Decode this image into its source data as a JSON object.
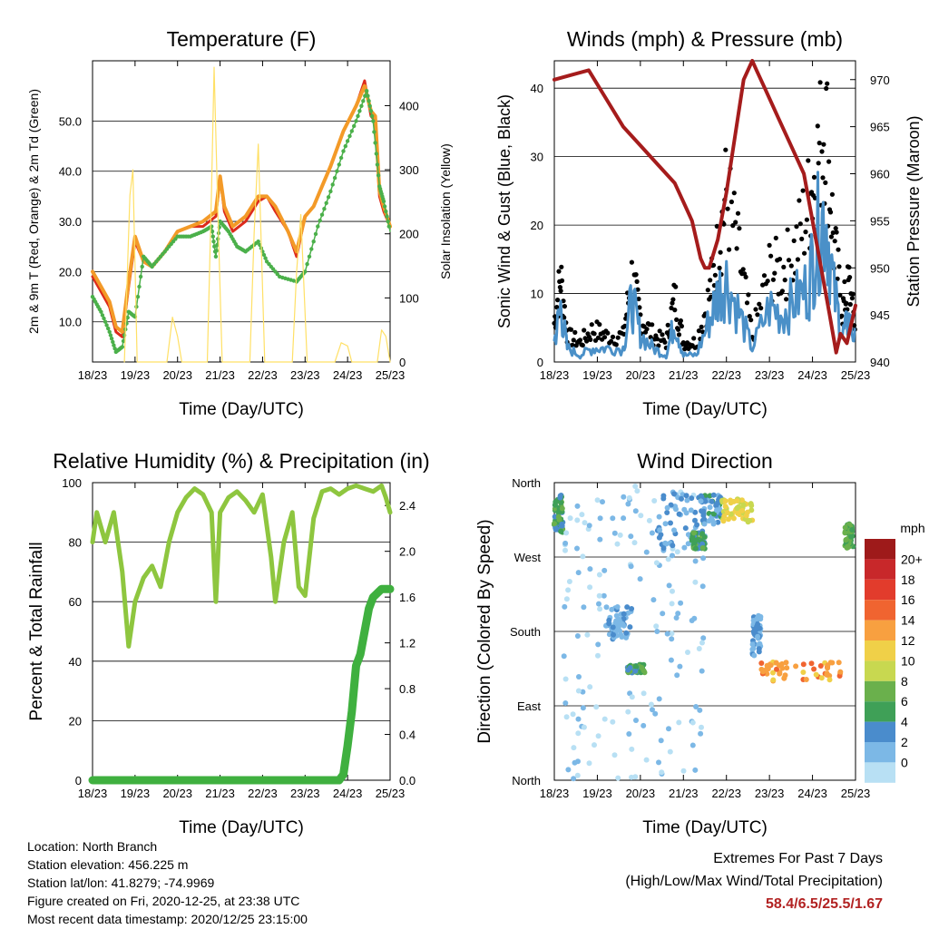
{
  "chart_data": [
    {
      "type": "line",
      "title": "Temperature (F)",
      "xlabel": "Time (Day/UTC)",
      "ylabel": "2m & 9m T (Red, Orange) & 2m Td (Green)",
      "y2label": "Solar Insolation (Yellow)",
      "x_ticks": [
        "18/23",
        "19/23",
        "20/23",
        "21/23",
        "22/23",
        "23/23",
        "24/23",
        "25/23"
      ],
      "y_ticks": [
        "10.0",
        "20.0",
        "30.0",
        "40.0",
        "50.0"
      ],
      "y2_ticks": [
        "0",
        "100",
        "200",
        "300",
        "400"
      ],
      "ylim": [
        2,
        62
      ],
      "y2lim": [
        0,
        470
      ],
      "xlim": [
        0,
        7
      ],
      "grid": "horizontal",
      "series": [
        {
          "name": "2m T",
          "color": "#dd2a1b",
          "x": [
            0,
            0.2,
            0.4,
            0.55,
            0.7,
            0.85,
            1.0,
            1.2,
            1.4,
            1.7,
            2.0,
            2.3,
            2.6,
            2.9,
            3.0,
            3.1,
            3.3,
            3.6,
            3.9,
            4.1,
            4.3,
            4.6,
            4.8,
            5.0,
            5.2,
            5.4,
            5.6,
            5.9,
            6.2,
            6.4,
            6.55,
            6.65,
            6.75,
            6.85,
            7.0
          ],
          "values": [
            19,
            16,
            13,
            8,
            7,
            17,
            26,
            22,
            21,
            24,
            28,
            29,
            29,
            31,
            39,
            32,
            28,
            30,
            34,
            35,
            32,
            28,
            23,
            31,
            33,
            37,
            41,
            48,
            53,
            58,
            51,
            50,
            35,
            32,
            29
          ]
        },
        {
          "name": "9m T",
          "color": "#f39a28",
          "x": [
            0,
            0.2,
            0.4,
            0.55,
            0.7,
            0.85,
            1.0,
            1.2,
            1.4,
            1.7,
            2.0,
            2.3,
            2.6,
            2.9,
            3.0,
            3.1,
            3.3,
            3.6,
            3.9,
            4.1,
            4.3,
            4.6,
            4.8,
            5.0,
            5.2,
            5.4,
            5.6,
            5.9,
            6.2,
            6.4,
            6.55,
            6.65,
            6.75,
            6.85,
            7.0
          ],
          "values": [
            20,
            17,
            14,
            9,
            8,
            18,
            27,
            22,
            21,
            24,
            28,
            29,
            30,
            32,
            39,
            33,
            29,
            31,
            35,
            35,
            33,
            28,
            24,
            31,
            33,
            37,
            41,
            48,
            53,
            57,
            52,
            51,
            36,
            33,
            29
          ]
        },
        {
          "name": "2m Td",
          "color": "#4bb04a",
          "x": [
            0,
            0.2,
            0.4,
            0.55,
            0.7,
            0.85,
            1.0,
            1.2,
            1.4,
            1.7,
            2.0,
            2.3,
            2.6,
            2.8,
            2.9,
            3.0,
            3.2,
            3.4,
            3.6,
            3.9,
            4.1,
            4.4,
            4.8,
            5.0,
            5.3,
            5.6,
            5.9,
            6.2,
            6.45,
            6.6,
            6.75,
            6.85,
            7.0
          ],
          "values": [
            15,
            12,
            8,
            4,
            5,
            12,
            11,
            23,
            21,
            24,
            27,
            27,
            28,
            29,
            23,
            30,
            28,
            25,
            24,
            26,
            22,
            19,
            18,
            20,
            29,
            36,
            44,
            50,
            56,
            50,
            37,
            34,
            28
          ]
        },
        {
          "name": "Solar Insolation",
          "color": "#ffe066",
          "axis": "y2",
          "x": [
            0.75,
            0.88,
            0.95,
            1.05,
            1.75,
            1.88,
            2.0,
            2.1,
            2.7,
            2.8,
            2.86,
            2.95,
            3.05,
            3.7,
            3.8,
            3.9,
            4.05,
            4.7,
            4.8,
            4.9,
            5.05,
            5.7,
            5.85,
            6.0,
            6.1,
            6.7,
            6.8,
            6.9,
            7.0
          ],
          "values": [
            0,
            260,
            300,
            0,
            0,
            70,
            40,
            0,
            0,
            270,
            460,
            230,
            0,
            0,
            200,
            340,
            0,
            0,
            140,
            230,
            0,
            0,
            30,
            25,
            0,
            0,
            50,
            40,
            0
          ]
        }
      ]
    },
    {
      "type": "scatter",
      "title": "Winds (mph) & Pressure (mb)",
      "xlabel": "Time (Day/UTC)",
      "ylabel": "Sonic Wind & Gust (Blue, Black)",
      "y2label": "Station Pressure (Maroon)",
      "x_ticks": [
        "18/23",
        "19/23",
        "20/23",
        "21/23",
        "22/23",
        "23/23",
        "24/23",
        "25/23"
      ],
      "y_ticks": [
        "0",
        "10",
        "20",
        "30",
        "40"
      ],
      "y2_ticks": [
        "940",
        "945",
        "950",
        "955",
        "960",
        "965",
        "970"
      ],
      "ylim": [
        0,
        44
      ],
      "y2lim": [
        940,
        972
      ],
      "xlim": [
        0,
        7
      ],
      "grid": "horizontal",
      "series": [
        {
          "name": "Sonic Wind",
          "color": "#4a90c8",
          "x": [
            0,
            0.15,
            0.3,
            0.6,
            0.9,
            1.2,
            1.6,
            1.8,
            2.0,
            2.3,
            2.6,
            2.8,
            3.0,
            3.3,
            3.6,
            3.8,
            4.0,
            4.3,
            4.6,
            5.0,
            5.3,
            5.6,
            5.9,
            6.1,
            6.3,
            6.5,
            6.7,
            6.85,
            7.0
          ],
          "values": [
            3,
            8,
            2,
            1,
            2,
            2,
            2,
            9,
            4,
            2,
            1,
            6,
            1,
            1,
            6,
            10,
            12,
            7,
            2,
            8,
            7,
            9,
            11,
            18,
            22,
            10,
            4,
            6,
            3
          ]
        },
        {
          "name": "Gust",
          "color": "#000000",
          "x": [
            0,
            0.15,
            0.3,
            0.6,
            0.9,
            1.2,
            1.6,
            1.8,
            2.0,
            2.3,
            2.6,
            2.8,
            3.0,
            3.3,
            3.6,
            3.8,
            4.0,
            4.3,
            4.6,
            5.0,
            5.3,
            5.6,
            5.9,
            6.1,
            6.3,
            6.5,
            6.7,
            6.85,
            7.0
          ],
          "values": [
            6,
            13,
            4,
            3,
            5,
            4,
            4,
            13,
            7,
            4,
            3,
            10,
            3,
            3,
            10,
            17,
            26,
            16,
            4,
            14,
            14,
            17,
            24,
            30,
            38,
            18,
            8,
            12,
            5
          ]
        },
        {
          "name": "Station Pressure",
          "color": "#a51c1c",
          "axis": "y2",
          "x": [
            0,
            0.4,
            0.8,
            1.2,
            1.6,
            2.0,
            2.4,
            2.8,
            3.0,
            3.2,
            3.4,
            3.5,
            3.6,
            3.8,
            4.0,
            4.2,
            4.4,
            4.6,
            4.7,
            4.9,
            5.2,
            5.5,
            5.8,
            6.0,
            6.2,
            6.4,
            6.55,
            6.65,
            6.8,
            7.0
          ],
          "values": [
            970,
            970.5,
            971,
            968,
            965,
            963,
            961,
            959,
            957,
            955,
            951,
            950,
            950,
            953,
            958,
            964,
            970,
            972,
            971,
            969,
            966,
            963,
            960,
            955,
            950,
            945,
            941,
            943,
            942,
            946
          ]
        }
      ]
    },
    {
      "type": "line",
      "title": "Relative Humidity (%) & Precipitation (in)",
      "xlabel": "Time (Day/UTC)",
      "ylabel": "Percent & Total Rainfall",
      "x_ticks": [
        "18/23",
        "19/23",
        "20/23",
        "21/23",
        "22/23",
        "23/23",
        "24/23",
        "25/23"
      ],
      "y_ticks": [
        "0",
        "20",
        "40",
        "60",
        "80",
        "100"
      ],
      "y2_ticks": [
        "0.0",
        "0.4",
        "0.8",
        "1.2",
        "1.6",
        "2.0",
        "2.4"
      ],
      "ylim": [
        0,
        100
      ],
      "y2lim": [
        0,
        2.6
      ],
      "xlim": [
        0,
        7
      ],
      "grid": "horizontal",
      "series": [
        {
          "name": "Relative Humidity",
          "color": "#8ec63f",
          "x": [
            0,
            0.1,
            0.3,
            0.5,
            0.7,
            0.85,
            1.0,
            1.2,
            1.4,
            1.6,
            1.8,
            2.0,
            2.2,
            2.4,
            2.6,
            2.8,
            2.9,
            3.0,
            3.2,
            3.4,
            3.6,
            3.8,
            4.0,
            4.2,
            4.3,
            4.5,
            4.7,
            4.85,
            5.0,
            5.2,
            5.4,
            5.6,
            5.8,
            6.0,
            6.2,
            6.4,
            6.6,
            6.8,
            6.9,
            7.0
          ],
          "values": [
            80,
            90,
            80,
            90,
            70,
            45,
            60,
            68,
            72,
            65,
            80,
            90,
            95,
            98,
            96,
            90,
            60,
            90,
            95,
            97,
            94,
            90,
            96,
            75,
            60,
            80,
            90,
            65,
            62,
            88,
            97,
            98,
            96,
            98,
            99,
            98,
            97,
            99,
            95,
            90
          ]
        },
        {
          "name": "Total Precipitation",
          "color": "#3fb03f",
          "axis": "y2",
          "x": [
            0,
            1,
            2,
            3,
            4,
            5,
            5.8,
            5.9,
            6.0,
            6.1,
            6.2,
            6.3,
            6.4,
            6.5,
            6.6,
            6.8,
            7.0
          ],
          "values": [
            0,
            0,
            0,
            0,
            0,
            0,
            0,
            0.05,
            0.3,
            0.6,
            1.0,
            1.1,
            1.3,
            1.5,
            1.6,
            1.67,
            1.67
          ]
        }
      ]
    },
    {
      "type": "scatter",
      "title": "Wind Direction",
      "xlabel": "Time (Day/UTC)",
      "ylabel": "Direction (Colored By Speed)",
      "x_ticks": [
        "18/23",
        "19/23",
        "20/23",
        "21/23",
        "22/23",
        "23/23",
        "24/23",
        "25/23"
      ],
      "y_ticks": [
        "North",
        "East",
        "South",
        "West",
        "North"
      ],
      "ylim": [
        0,
        360
      ],
      "xlim": [
        0,
        7
      ],
      "grid": "horizontal",
      "legend_title": "mph",
      "legend_labels": [
        "20+",
        "18",
        "16",
        "14",
        "12",
        "10",
        "8",
        "6",
        "4",
        "2",
        "0"
      ],
      "legend_colors": [
        "#9e1a1a",
        "#c8282a",
        "#e23c2c",
        "#f06430",
        "#f8a040",
        "#f0d048",
        "#c8d850",
        "#6ab04c",
        "#3fa057",
        "#4a8ccc",
        "#7cb8e6",
        "#b8e0f4"
      ],
      "clusters": [
        {
          "x_range": [
            0,
            0.2
          ],
          "dir_range": [
            300,
            345
          ],
          "speed": 6
        },
        {
          "x_range": [
            0.2,
            3.5
          ],
          "dir_range": [
            0,
            360
          ],
          "speed": 1
        },
        {
          "x_range": [
            1.2,
            1.8
          ],
          "dir_range": [
            170,
            210
          ],
          "speed": 3
        },
        {
          "x_range": [
            1.7,
            2.1
          ],
          "dir_range": [
            130,
            140
          ],
          "speed": 6
        },
        {
          "x_range": [
            2.4,
            3.5
          ],
          "dir_range": [
            280,
            350
          ],
          "speed": 3
        },
        {
          "x_range": [
            3.2,
            3.5
          ],
          "dir_range": [
            280,
            300
          ],
          "speed": 6
        },
        {
          "x_range": [
            3.4,
            3.9
          ],
          "dir_range": [
            310,
            345
          ],
          "speed": 4
        },
        {
          "x_range": [
            3.9,
            4.6
          ],
          "dir_range": [
            310,
            340
          ],
          "speed": 11
        },
        {
          "x_range": [
            4.6,
            4.8
          ],
          "dir_range": [
            150,
            200
          ],
          "speed": 3
        },
        {
          "x_range": [
            4.8,
            6.7
          ],
          "dir_range": [
            120,
            145
          ],
          "speed": 14
        },
        {
          "x_range": [
            6.75,
            6.95
          ],
          "dir_range": [
            280,
            310
          ],
          "speed": 7
        }
      ]
    }
  ],
  "footer": {
    "location": "Location: North Branch",
    "elevation": "Station elevation: 456.225 m",
    "latlon": "Station lat/lon: 41.8279; -74.9969",
    "created": "Figure created on Fri, 2020-12-25, at 23:38 UTC",
    "recent": "Most recent data timestamp: 2020/12/25 23:15:00"
  },
  "extremes": {
    "title": "Extremes For Past 7 Days",
    "subtitle": "(High/Low/Max Wind/Total Precipitation)",
    "values": "58.4/6.5/25.5/1.67"
  }
}
